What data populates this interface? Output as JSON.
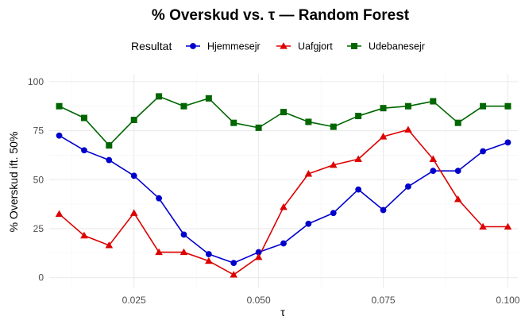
{
  "chart_data": {
    "type": "line",
    "title": "% Overskud vs. τ — Random Forest",
    "xlabel": "τ",
    "ylabel": "% Overskud ift. 50%",
    "xlim": [
      0.008,
      0.102
    ],
    "ylim": [
      -5,
      104
    ],
    "x_ticks": [
      0.025,
      0.05,
      0.075,
      0.1
    ],
    "x_tick_labels": [
      "0.025",
      "0.050",
      "0.075",
      "0.100"
    ],
    "y_ticks": [
      0,
      25,
      50,
      75,
      100
    ],
    "y_tick_labels": [
      "0",
      "25",
      "50",
      "75",
      "100"
    ],
    "grid": true,
    "legend": {
      "title": "Resultat",
      "position": "top"
    },
    "x": [
      0.01,
      0.015,
      0.02,
      0.025,
      0.03,
      0.035,
      0.04,
      0.045,
      0.05,
      0.055,
      0.06,
      0.065,
      0.07,
      0.075,
      0.08,
      0.085,
      0.09,
      0.095,
      0.1
    ],
    "series": [
      {
        "name": "Hjemmesejr",
        "color": "#0000cc",
        "marker": "circle",
        "values": [
          72.5,
          65,
          60,
          52,
          40.5,
          22,
          12,
          7.5,
          13,
          17.5,
          27.5,
          33,
          45,
          34.5,
          46.5,
          54.5,
          54.5,
          64.5,
          69
        ]
      },
      {
        "name": "Uafgjort",
        "color": "#dd0000",
        "marker": "triangle",
        "values": [
          32.5,
          21.5,
          16.5,
          33,
          13,
          13,
          8.5,
          1.5,
          10.5,
          36,
          53,
          57.5,
          60.5,
          72,
          75.5,
          60.5,
          40,
          26,
          26
        ]
      },
      {
        "name": "Udebanesejr",
        "color": "#006600",
        "marker": "square",
        "values": [
          87.5,
          81.5,
          67.5,
          80.5,
          92.5,
          87.5,
          91.5,
          79,
          76.5,
          84.5,
          79.5,
          77,
          82.5,
          86.5,
          87.5,
          90,
          79,
          87.5,
          87.5
        ]
      }
    ]
  }
}
